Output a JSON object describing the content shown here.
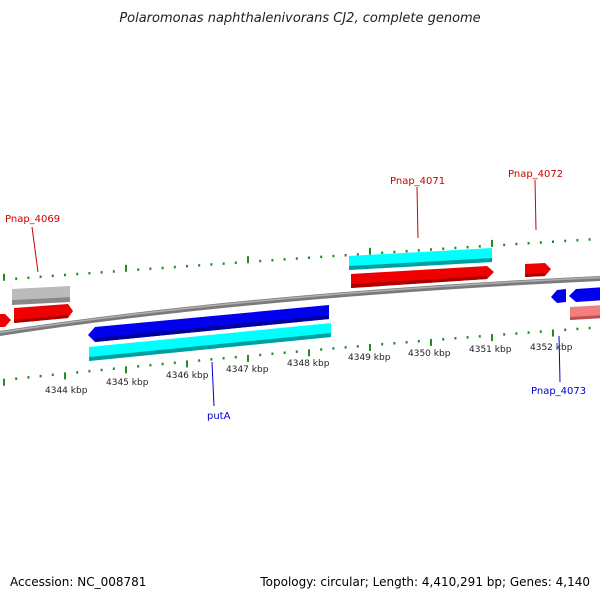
{
  "title": "Polaromonas naphthalenivorans CJ2, complete genome",
  "footer": {
    "accession": "Accession: NC_008781",
    "summary": "Topology: circular; Length: 4,410,291 bp; Genes: 4,140"
  },
  "colors": {
    "backbone": "#888888",
    "tick": "#228B22",
    "forward_gene": "#ff0000",
    "reverse_gene": "#0000ee",
    "cds": "#00ffff",
    "pseudo": "#bbbbbb",
    "light_red": "#f08080",
    "forward_label": "#cc0000",
    "reverse_label": "#0000cc"
  },
  "tick_labels": [
    "4344 kbp",
    "4345 kbp",
    "4346 kbp",
    "4347 kbp",
    "4348 kbp",
    "4349 kbp",
    "4350 kbp",
    "4351 kbp",
    "4352 kbp"
  ],
  "gene_labels": {
    "pnap_4069": "Pnap_4069",
    "pnap_4071": "Pnap_4071",
    "pnap_4072": "Pnap_4072",
    "pnap_4073": "Pnap_4073",
    "puta": "putA"
  }
}
